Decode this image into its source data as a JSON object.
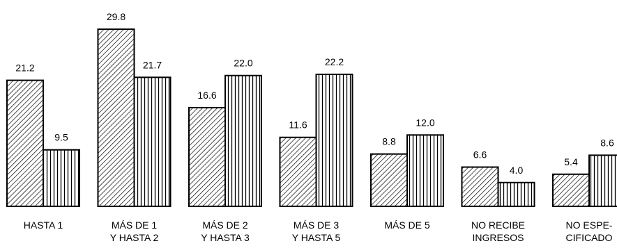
{
  "chart_data": {
    "type": "bar",
    "title": "",
    "xlabel": "",
    "ylabel": "",
    "categories": [
      [
        "HASTA 1"
      ],
      [
        "MÁS DE 1",
        "Y HASTA 2"
      ],
      [
        "MÁS DE 2",
        "Y HASTA 3"
      ],
      [
        "MÁS DE 3",
        "Y HASTA 5"
      ],
      [
        "MÁS DE 5"
      ],
      [
        "NO RECIBE",
        "INGRESOS"
      ],
      [
        "NO ESPE-",
        "CIFICADO"
      ]
    ],
    "series": [
      {
        "pattern": "diagonal-hatch",
        "values": [
          21.2,
          29.8,
          16.6,
          11.6,
          8.8,
          6.6,
          5.4
        ]
      },
      {
        "pattern": "vertical-lines",
        "values": [
          9.5,
          21.7,
          22.0,
          22.2,
          12.0,
          4.0,
          8.6
        ]
      }
    ],
    "value_labels": [
      [
        "21.2",
        "29.8",
        "16.6",
        "11.6",
        "8.8",
        "6.6",
        "5.4"
      ],
      [
        "9.5",
        "21.7",
        "22.0",
        "22.2",
        "12.0",
        "4.0",
        "8.6"
      ]
    ],
    "ylim": [
      0,
      29.8
    ],
    "grid": false,
    "legend": "none"
  }
}
